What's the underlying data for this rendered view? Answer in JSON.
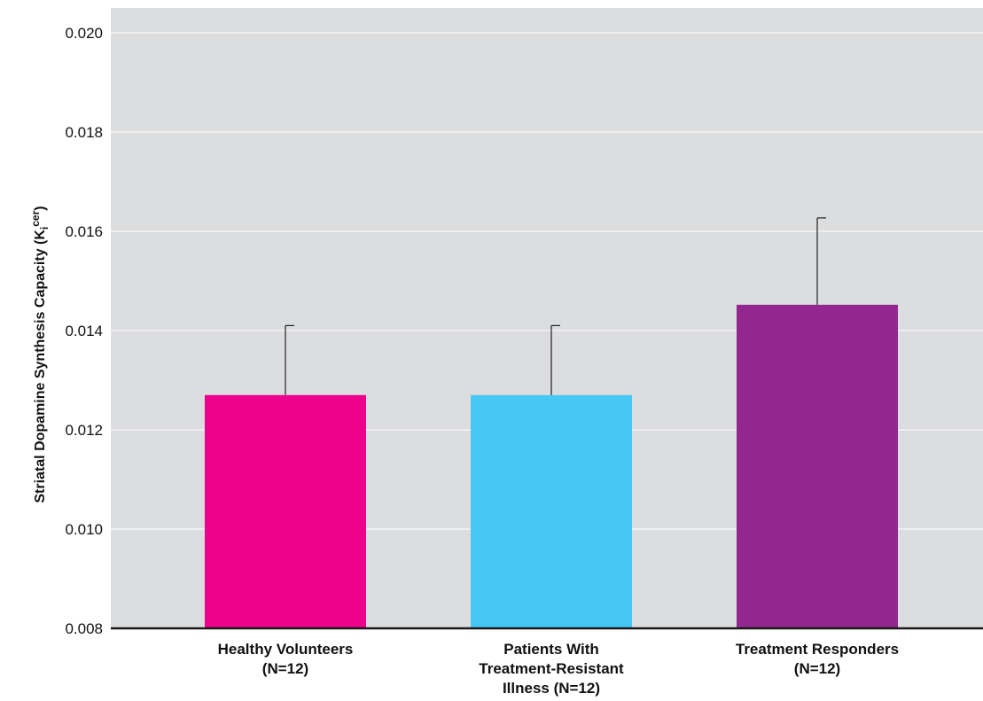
{
  "chart_data": {
    "type": "bar",
    "title": "",
    "xlabel": "",
    "ylabel": "Striatal Dopamine Synthesis Capacity (K",
    "ylabel_subscript": "i",
    "ylabel_superscript": "cer",
    "ylabel_suffix": ")",
    "ylim": [
      0.008,
      0.0205
    ],
    "yticks": [
      "0.008",
      "0.010",
      "0.012",
      "0.014",
      "0.016",
      "0.018",
      "0.020"
    ],
    "ytick_values": [
      0.008,
      0.01,
      0.012,
      0.014,
      0.016,
      0.018,
      0.02
    ],
    "grid": true,
    "background_color": "#dcdddf",
    "grid_color": "#ffffff",
    "categories": [
      [
        "Healthy Volunteers",
        "(N=12)"
      ],
      [
        "Patients With",
        "Treatment-Resistant",
        "Illness (N=12)"
      ],
      [
        "Treatment Responders",
        "(N=12)"
      ]
    ],
    "values": [
      0.0127,
      0.0127,
      0.01452
    ],
    "error_upper": [
      0.0141,
      0.0141,
      0.01627
    ],
    "colors": [
      "#ec008c",
      "#46c8f4",
      "#92278f"
    ]
  }
}
